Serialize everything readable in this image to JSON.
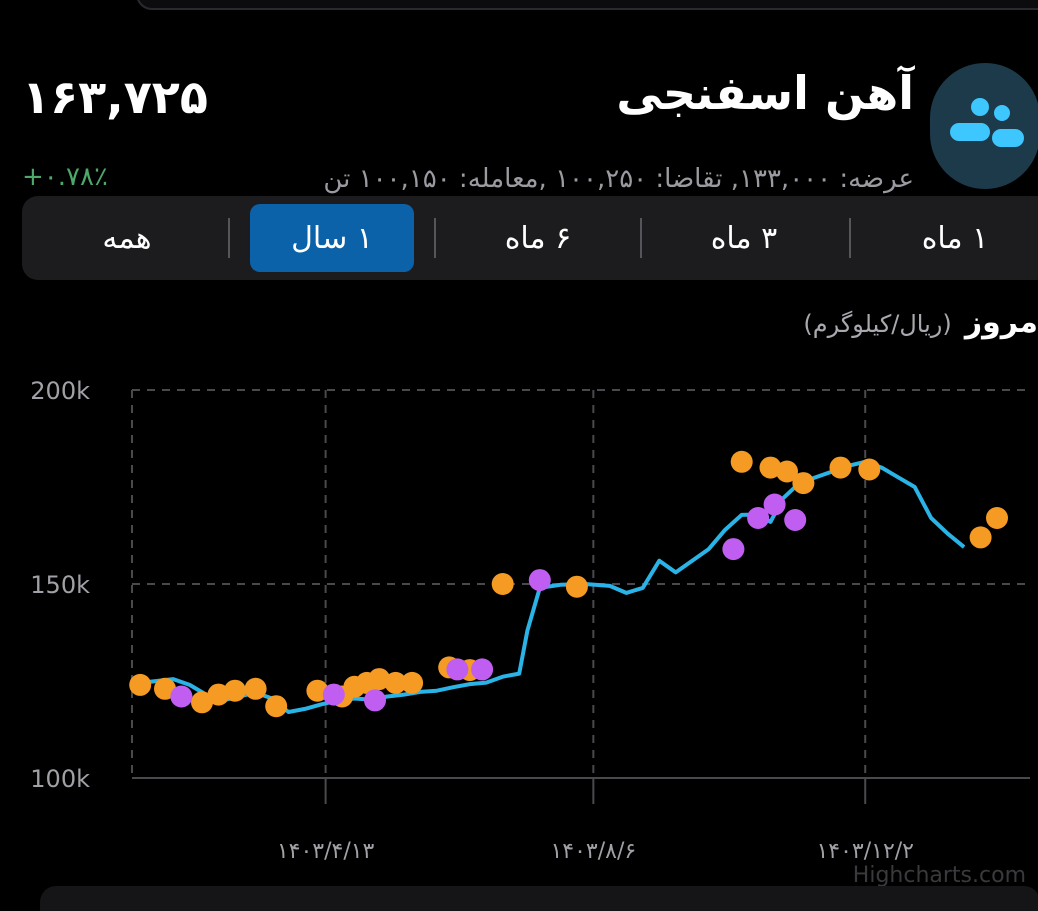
{
  "header": {
    "title": "آهن اسفنجی",
    "price": "۱۶۳,۷۲۵",
    "change": "+۰.۷۸٪",
    "stats": "عرضه: ۱۳۳,۰۰۰, تقاضا: ۱۰۰,۲۵۰ ,معامله: ۱۰۰,۱۵۰ تن"
  },
  "tabs": [
    "۱ ماه",
    "۳ ماه",
    "۶ ماه",
    "۱ سال",
    "همه"
  ],
  "active_tab": "۱ سال",
  "chart_caption": {
    "title": "مروز",
    "unit": "(ریال/کیلوگرم)"
  },
  "colors": {
    "line": "#2ab3e6",
    "orange_points": "#f59a23",
    "purple_points": "#c15ef2",
    "accent": "#0b62a8",
    "positive": "#4ea86a"
  },
  "chart_data": {
    "type": "line",
    "ylim": [
      100000,
      200000
    ],
    "y_ticks": [
      100000,
      150000,
      200000
    ],
    "y_tick_labels": [
      "100k",
      "150k",
      "200k"
    ],
    "x_ticks": [
      {
        "x": 3.35,
        "label": "۱۴۰۳/۴/۱۳"
      },
      {
        "x": 6.6,
        "label": "۱۴۰۳/۸/۶"
      },
      {
        "x": 9.9,
        "label": "۱۴۰۳/۱۲/۲"
      }
    ],
    "xlim": [
      1.0,
      11.9
    ],
    "series": [
      {
        "kind": "line",
        "points": [
          [
            1.1,
            124500
          ],
          [
            1.3,
            125000
          ],
          [
            1.5,
            125500
          ],
          [
            1.7,
            124000
          ],
          [
            1.9,
            121500
          ],
          [
            2.1,
            120000
          ],
          [
            2.3,
            121000
          ],
          [
            2.5,
            122000
          ],
          [
            2.7,
            120500
          ],
          [
            2.9,
            117000
          ],
          [
            3.1,
            117800
          ],
          [
            3.3,
            119000
          ],
          [
            3.5,
            120000
          ],
          [
            3.7,
            120500
          ],
          [
            3.9,
            120200
          ],
          [
            4.1,
            121000
          ],
          [
            4.3,
            121500
          ],
          [
            4.5,
            122200
          ],
          [
            4.7,
            122500
          ],
          [
            4.9,
            123400
          ],
          [
            5.1,
            124200
          ],
          [
            5.3,
            124600
          ],
          [
            5.5,
            126100
          ],
          [
            5.7,
            126900
          ],
          [
            5.8,
            138000
          ],
          [
            5.95,
            149000
          ],
          [
            6.2,
            149800
          ],
          [
            6.5,
            150000
          ],
          [
            6.8,
            149500
          ],
          [
            7.0,
            147700
          ],
          [
            7.2,
            149000
          ],
          [
            7.4,
            156000
          ],
          [
            7.6,
            153000
          ],
          [
            7.8,
            156000
          ],
          [
            8.0,
            159000
          ],
          [
            8.2,
            164000
          ],
          [
            8.4,
            167800
          ],
          [
            8.6,
            167900
          ],
          [
            8.75,
            166000
          ],
          [
            8.9,
            172000
          ],
          [
            9.1,
            176000
          ],
          [
            9.3,
            177500
          ],
          [
            9.5,
            179000
          ],
          [
            9.7,
            180500
          ],
          [
            9.9,
            181500
          ],
          [
            10.1,
            180000
          ],
          [
            10.3,
            177500
          ],
          [
            10.5,
            175000
          ],
          [
            10.7,
            167000
          ],
          [
            10.9,
            163000
          ],
          [
            11.1,
            159500
          ]
        ]
      },
      {
        "kind": "scatter",
        "color": "orange",
        "points": [
          [
            1.1,
            124000
          ],
          [
            1.4,
            123000
          ],
          [
            1.85,
            119500
          ],
          [
            2.05,
            121500
          ],
          [
            2.25,
            122500
          ],
          [
            2.5,
            123000
          ],
          [
            2.75,
            118500
          ],
          [
            3.25,
            122500
          ],
          [
            3.55,
            121000
          ],
          [
            3.7,
            123500
          ],
          [
            3.85,
            124500
          ],
          [
            4.0,
            125500
          ],
          [
            4.2,
            124500
          ],
          [
            4.4,
            124500
          ],
          [
            4.85,
            128500
          ],
          [
            5.1,
            127800
          ],
          [
            5.5,
            150000
          ],
          [
            6.4,
            149300
          ],
          [
            8.4,
            181500
          ],
          [
            8.75,
            180000
          ],
          [
            8.95,
            179000
          ],
          [
            9.15,
            176000
          ],
          [
            9.6,
            180000
          ],
          [
            9.95,
            179500
          ],
          [
            11.3,
            162000
          ],
          [
            11.5,
            167000
          ]
        ]
      },
      {
        "kind": "scatter",
        "color": "purple",
        "points": [
          [
            1.6,
            121000
          ],
          [
            3.45,
            121500
          ],
          [
            3.95,
            120000
          ],
          [
            4.95,
            128000
          ],
          [
            5.25,
            128000
          ],
          [
            5.95,
            151000
          ],
          [
            8.3,
            159000
          ],
          [
            8.6,
            167000
          ],
          [
            8.8,
            170500
          ],
          [
            9.05,
            166500
          ]
        ]
      }
    ],
    "credit": "Highcharts.com"
  }
}
